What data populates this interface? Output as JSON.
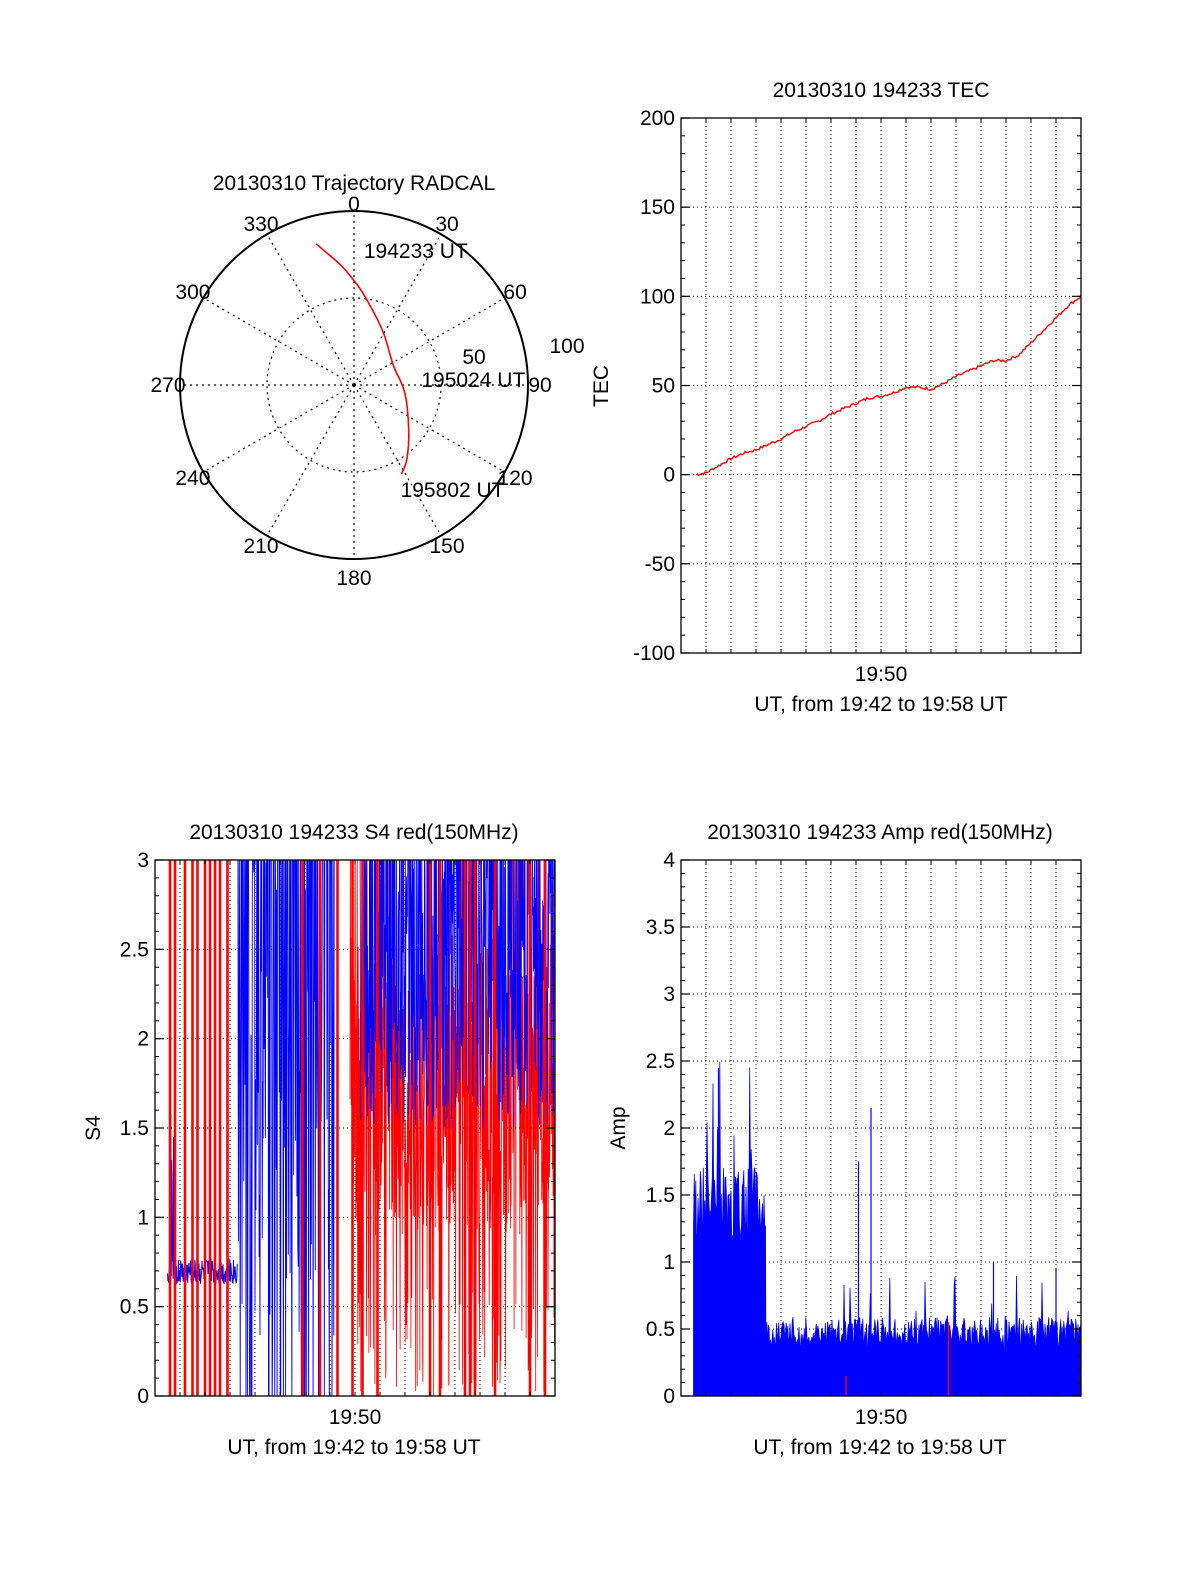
{
  "colors": {
    "red": "#ff0000",
    "blue": "#0000ff",
    "axis": "#000000"
  },
  "chart_data": [
    {
      "id": "trajectory",
      "type": "polar",
      "title": "20130310 Trajectory RADCAL",
      "azimuth_labels": [
        "0",
        "30",
        "60",
        "90",
        "120",
        "150",
        "180",
        "210",
        "240",
        "270",
        "300",
        "330"
      ],
      "azimuth_values": [
        0,
        30,
        60,
        90,
        120,
        150,
        180,
        210,
        240,
        270,
        300,
        330
      ],
      "radial_labels": [
        "50",
        "100"
      ],
      "radial_values": [
        50,
        100
      ],
      "radial_max": 100,
      "grid": true,
      "trajectory": {
        "az": [
          345,
          348,
          352,
          356,
          0,
          5,
          11,
          20,
          33,
          50,
          70,
          85,
          100,
          115,
          128,
          138,
          146,
          152
        ],
        "r": [
          84,
          78,
          72,
          66,
          60,
          54,
          47,
          40,
          33,
          27,
          25,
          27,
          30,
          34,
          40,
          47,
          54,
          58
        ],
        "color": "red"
      },
      "annotations": [
        {
          "text": "194233 UT",
          "az": 5,
          "r": 78
        },
        {
          "text": "195024 UT",
          "az": 85,
          "r": 40
        },
        {
          "text": "195802 UT",
          "az": 155,
          "r": 66
        }
      ]
    },
    {
      "id": "tec",
      "type": "line",
      "title": "20130310 194233 TEC",
      "xlabel": "UT, from 19:42 to 19:58 UT",
      "ylabel": "TEC",
      "x_unit": "minutes since 19:42",
      "xlim": [
        0,
        16
      ],
      "ylim": [
        -100,
        200
      ],
      "yticks": [
        -100,
        -50,
        0,
        50,
        100,
        150,
        200
      ],
      "xtick_labels": [
        {
          "x": 8,
          "label": "19:50"
        }
      ],
      "grid": true,
      "series": [
        {
          "name": "TEC",
          "color": "red",
          "x": [
            0.6,
            1,
            1.5,
            2,
            2.5,
            3,
            3.5,
            4,
            4.5,
            5,
            5.5,
            6,
            6.5,
            7,
            7.5,
            8,
            8.5,
            9,
            9.5,
            10,
            10.5,
            11,
            11.5,
            12,
            12.5,
            13,
            13.5,
            14,
            14.5,
            15,
            15.5,
            16
          ],
          "y": [
            0,
            1,
            5,
            9,
            12,
            14,
            17,
            20,
            24,
            27,
            30,
            34,
            37,
            40,
            43,
            44,
            46,
            49,
            49,
            48,
            51,
            55,
            58,
            61,
            64,
            64,
            67,
            74,
            81,
            88,
            95,
            100
          ]
        }
      ]
    },
    {
      "id": "s4",
      "type": "line",
      "title": "20130310 194233 S4 red(150MHz)",
      "xlabel": "UT, from 19:42 to 19:58 UT",
      "ylabel": "S4",
      "x_unit": "minutes since 19:42",
      "xlim": [
        0,
        16
      ],
      "ylim": [
        0,
        3
      ],
      "yticks": [
        0,
        0.5,
        1,
        1.5,
        2,
        2.5,
        3
      ],
      "ytick_labels": [
        "0",
        "0.5",
        "1",
        "1.5",
        "2",
        "2.5",
        "3"
      ],
      "xtick_labels": [
        {
          "x": 8,
          "label": "19:50"
        }
      ],
      "grid": true,
      "series": [
        {
          "name": "S4 red",
          "color": "red",
          "spikes_x": [
            0.6,
            0.8,
            1.2,
            1.5,
            1.7,
            2.0,
            2.2,
            2.4,
            2.6,
            2.9,
            5.9,
            6.6,
            7.3,
            7.9,
            8.3,
            8.9,
            11.0,
            11.4,
            12.4,
            12.6,
            12.8,
            13.6,
            15.0,
            15.6
          ],
          "band_x": [
            7.8,
            16
          ],
          "band_range": [
            0.9,
            2.6
          ]
        },
        {
          "name": "S4 blue",
          "color": "blue",
          "baseline": {
            "x": [
              0.5,
              3.3
            ],
            "level": 0.7
          },
          "dense_x": [
            3.3,
            7.2
          ],
          "dense_range": [
            0.3,
            3.0
          ],
          "band_x": [
            8.2,
            16
          ],
          "band_range": [
            1.5,
            3.0
          ]
        }
      ]
    },
    {
      "id": "amp",
      "type": "line",
      "title": "20130310 194233 Amp red(150MHz)",
      "xlabel": "UT, from 19:42 to 19:58 UT",
      "ylabel": "Amp",
      "x_unit": "minutes since 19:42",
      "xlim": [
        0,
        16
      ],
      "ylim": [
        0,
        4
      ],
      "yticks": [
        0,
        0.5,
        1,
        1.5,
        2,
        2.5,
        3,
        3.5,
        4
      ],
      "ytick_labels": [
        "0",
        "0.5",
        "1",
        "1.5",
        "2",
        "2.5",
        "3",
        "3.5",
        "4"
      ],
      "xtick_labels": [
        {
          "x": 8,
          "label": "19:50"
        }
      ],
      "grid": true,
      "series": [
        {
          "name": "Amp blue",
          "color": "blue",
          "segments": [
            {
              "x": [
                0.5,
                3.4
              ],
              "base": 1.3,
              "spread": 0.3,
              "peak": 2.45
            },
            {
              "x": [
                3.4,
                16
              ],
              "base": 0.42,
              "spread": 0.12,
              "peak": 2.15
            }
          ],
          "peaks": [
            {
              "x": 1.5,
              "y": 2.45
            },
            {
              "x": 7.1,
              "y": 1.75
            },
            {
              "x": 7.6,
              "y": 2.15
            },
            {
              "x": 12.5,
              "y": 1.0
            },
            {
              "x": 15.0,
              "y": 0.95
            }
          ]
        },
        {
          "name": "Amp red",
          "color": "red",
          "peaks": [
            {
              "x": 6.6,
              "y": 0.15
            },
            {
              "x": 10.7,
              "y": 0.55
            }
          ]
        }
      ]
    }
  ]
}
